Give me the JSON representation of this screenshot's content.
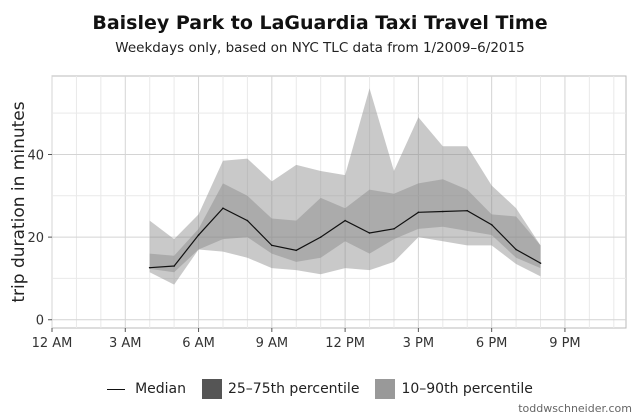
{
  "chart_data": {
    "type": "area",
    "title": "Baisley Park to LaGuardia Taxi Travel Time",
    "subtitle": "Weekdays only, based on NYC TLC data from 1/2009–6/2015",
    "xlabel": "",
    "ylabel": "trip duration in minutes",
    "x_ticks": [
      {
        "value": 0,
        "label": "12 AM"
      },
      {
        "value": 3,
        "label": "3 AM"
      },
      {
        "value": 6,
        "label": "6 AM"
      },
      {
        "value": 9,
        "label": "9 AM"
      },
      {
        "value": 12,
        "label": "12 PM"
      },
      {
        "value": 15,
        "label": "3 PM"
      },
      {
        "value": 18,
        "label": "6 PM"
      },
      {
        "value": 21,
        "label": "9 PM"
      }
    ],
    "y_ticks": [
      0,
      20,
      40
    ],
    "xlim": [
      0,
      23.5
    ],
    "ylim": [
      -2,
      59
    ],
    "grid": true,
    "legend_position": "bottom",
    "x": [
      4,
      5,
      6,
      7,
      8,
      9,
      10,
      11,
      12,
      13,
      14,
      15,
      16,
      17,
      18,
      19,
      20
    ],
    "series": [
      {
        "name": "Median",
        "kind": "line",
        "color": "#111111",
        "values": [
          12.6,
          13,
          20.5,
          27,
          24,
          18,
          16.8,
          20,
          24,
          21,
          22,
          26,
          26.2,
          26.4,
          23,
          17,
          13.7
        ]
      },
      {
        "name": "25–75th percentile",
        "kind": "band",
        "color": "#777777",
        "lower": [
          12.3,
          11.5,
          17,
          19.5,
          20,
          16,
          14,
          15,
          19,
          16,
          19.5,
          22,
          22.5,
          21.5,
          20.5,
          15,
          12.5
        ],
        "upper": [
          16,
          15.5,
          22,
          33,
          30,
          24.5,
          24,
          29.5,
          27,
          31.5,
          30.5,
          33,
          34,
          31.5,
          25.5,
          25,
          18
        ]
      },
      {
        "name": "10–90th percentile",
        "kind": "band",
        "color": "#bbbbbb",
        "lower": [
          11.5,
          8.5,
          17,
          16.5,
          15,
          12.5,
          12,
          11,
          12.5,
          12,
          14,
          20,
          19,
          18,
          18,
          13.5,
          10.5
        ],
        "upper": [
          24,
          19.5,
          25.5,
          38.5,
          39,
          33.5,
          37.5,
          36,
          35,
          56,
          36,
          49,
          42,
          42,
          32.5,
          27,
          18
        ]
      }
    ]
  },
  "credit": "toddwschneider.com"
}
